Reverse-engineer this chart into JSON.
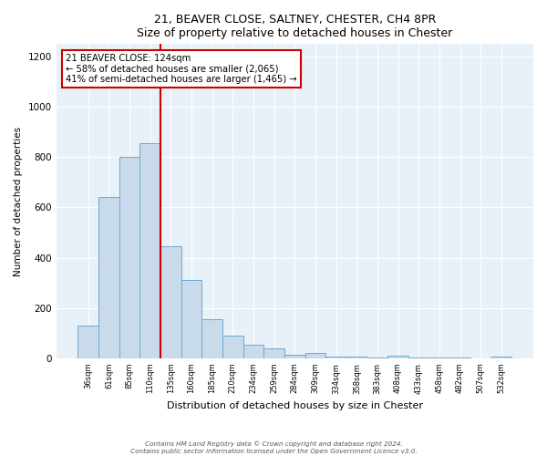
{
  "title": "21, BEAVER CLOSE, SALTNEY, CHESTER, CH4 8PR",
  "subtitle": "Size of property relative to detached houses in Chester",
  "xlabel": "Distribution of detached houses by size in Chester",
  "ylabel": "Number of detached properties",
  "bar_labels": [
    "36sqm",
    "61sqm",
    "85sqm",
    "110sqm",
    "135sqm",
    "160sqm",
    "185sqm",
    "210sqm",
    "234sqm",
    "259sqm",
    "284sqm",
    "309sqm",
    "334sqm",
    "358sqm",
    "383sqm",
    "408sqm",
    "433sqm",
    "458sqm",
    "482sqm",
    "507sqm",
    "532sqm"
  ],
  "bar_values": [
    130,
    640,
    800,
    855,
    445,
    310,
    155,
    90,
    55,
    40,
    15,
    20,
    5,
    5,
    2,
    10,
    2,
    2,
    2,
    1,
    5
  ],
  "bar_color": "#c9daea",
  "bar_edge_color": "#6aaad4",
  "vline_color": "#cc0000",
  "ylim": [
    0,
    1250
  ],
  "yticks": [
    0,
    200,
    400,
    600,
    800,
    1000,
    1200
  ],
  "annotation_title": "21 BEAVER CLOSE: 124sqm",
  "annotation_line1": "← 58% of detached houses are smaller (2,065)",
  "annotation_line2": "41% of semi-detached houses are larger (1,465) →",
  "annotation_box_color": "#cc0000",
  "footer_line1": "Contains HM Land Registry data © Crown copyright and database right 2024.",
  "footer_line2": "Contains public sector information licensed under the Open Government Licence v3.0.",
  "background_color": "#ffffff",
  "plot_bg_color": "#e8f0f8"
}
